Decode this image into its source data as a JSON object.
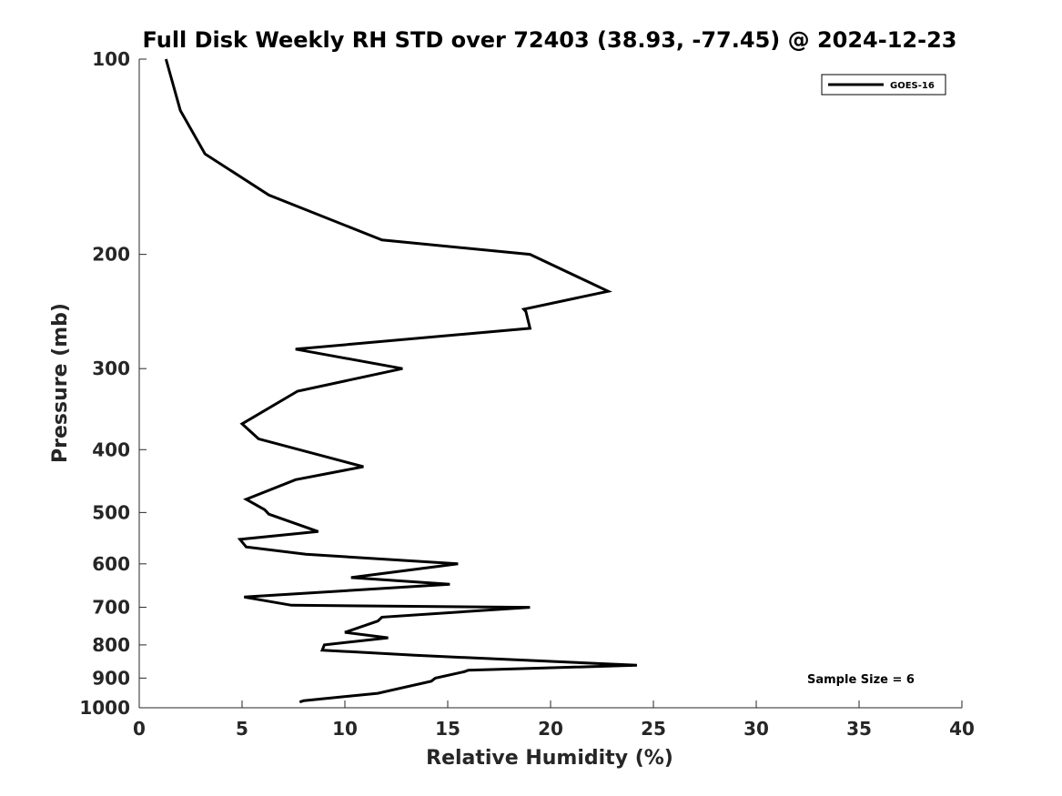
{
  "chart_data": {
    "type": "line",
    "title": "Full Disk Weekly RH STD over 72403 (38.93, -77.45) @ 2024-12-23",
    "xlabel": "Relative Humidity (%)",
    "ylabel": "Pressure (mb)",
    "xlim": [
      0,
      40
    ],
    "ylim": [
      1000,
      100
    ],
    "y_scale": "log",
    "y_inverted": true,
    "x_ticks": [
      0,
      5,
      10,
      15,
      20,
      25,
      30,
      35,
      40
    ],
    "x_tick_labels": [
      "0",
      "5",
      "10",
      "15",
      "20",
      "25",
      "30",
      "35",
      "40"
    ],
    "y_ticks": [
      100,
      200,
      300,
      400,
      500,
      600,
      700,
      800,
      900,
      1000
    ],
    "y_tick_labels": [
      "100",
      "200",
      "300",
      "400",
      "500",
      "600",
      "700",
      "800",
      "900",
      "1000"
    ],
    "grid": false,
    "legend": {
      "placement": "top-right"
    },
    "annotation": "Sample Size = 6",
    "series": [
      {
        "name": "GOES-16",
        "color": "#000000",
        "x": [
          1.3,
          2.0,
          3.2,
          6.3,
          11.8,
          19.0,
          22.8,
          18.7,
          18.8,
          19.0,
          7.6,
          12.8,
          7.7,
          5.0,
          5.8,
          10.9,
          7.6,
          5.2,
          6.1,
          6.3,
          8.7,
          4.9,
          5.2,
          8.1,
          15.5,
          10.3,
          15.1,
          5.1,
          7.4,
          19.0,
          11.8,
          11.6,
          10.0,
          12.1,
          9.0,
          8.9,
          13.4,
          24.2,
          16.0,
          15.8,
          14.4,
          14.2,
          11.6,
          8.0,
          7.8
        ],
        "y": [
          100,
          120,
          140,
          162,
          190,
          200,
          228,
          243,
          245,
          260,
          280,
          300,
          325,
          365,
          385,
          425,
          445,
          477,
          495,
          503,
          535,
          550,
          565,
          580,
          600,
          630,
          645,
          675,
          695,
          700,
          725,
          735,
          765,
          780,
          800,
          815,
          830,
          860,
          875,
          880,
          900,
          910,
          950,
          975,
          980
        ]
      }
    ]
  }
}
